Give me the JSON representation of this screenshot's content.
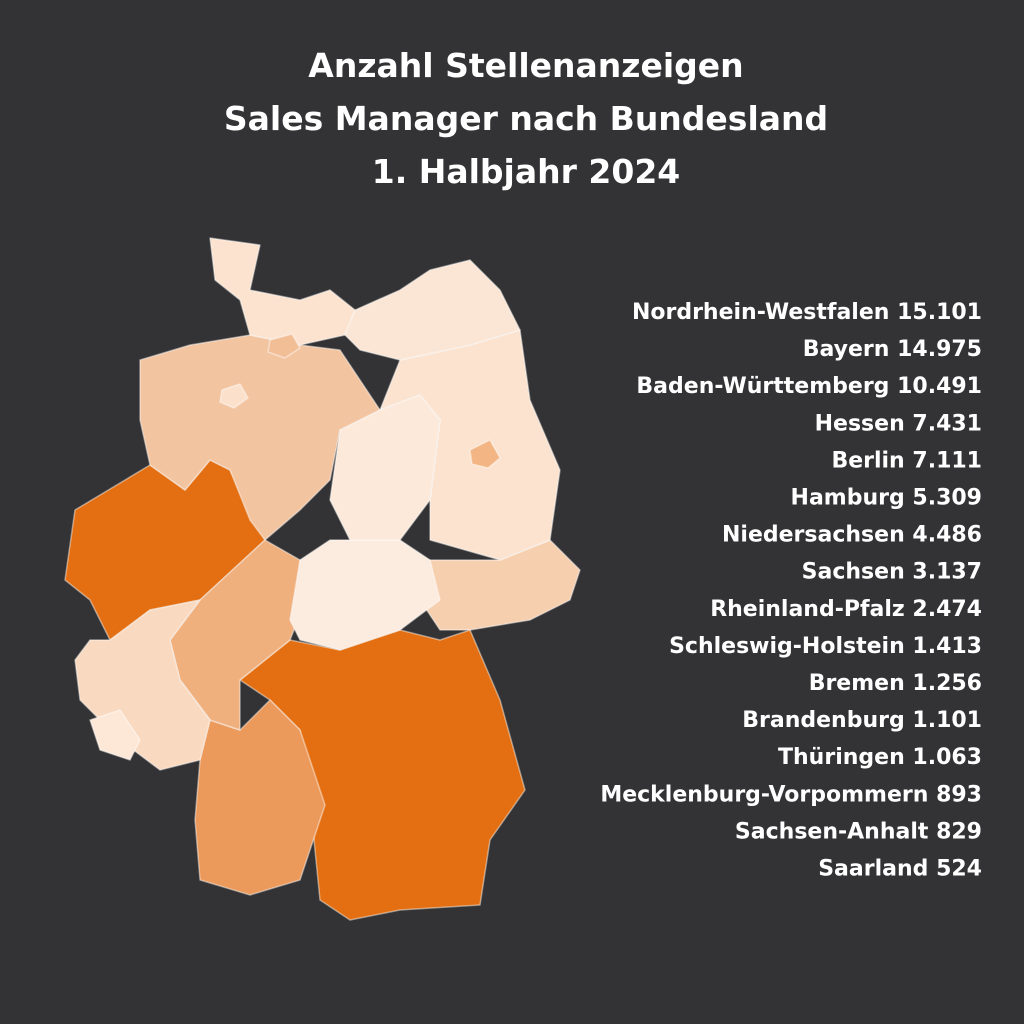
{
  "chart_data": {
    "type": "choropleth",
    "title": [
      "Anzahl Stellenanzeigen",
      "Sales Manager nach Bundesland",
      "1. Halbjahr 2024"
    ],
    "categories": [
      "Nordrhein-Westfalen",
      "Bayern",
      "Baden-Württemberg",
      "Hessen",
      "Berlin",
      "Hamburg",
      "Niedersachsen",
      "Sachsen",
      "Rheinland-Pfalz",
      "Schleswig-Holstein",
      "Bremen",
      "Brandenburg",
      "Thüringen",
      "Mecklenburg-Vorpommern",
      "Sachsen-Anhalt",
      "Saarland"
    ],
    "values": [
      15101,
      14975,
      10491,
      7431,
      7111,
      5309,
      4486,
      3137,
      2474,
      1413,
      1256,
      1101,
      1063,
      893,
      829,
      524
    ],
    "value_labels": [
      "15.101",
      "14.975",
      "10.491",
      "7.431",
      "7.111",
      "5.309",
      "4.486",
      "3.137",
      "2.474",
      "1.413",
      "1.256",
      "1.101",
      "1.063",
      "893",
      "829",
      "524"
    ],
    "colors": [
      "#e36f12",
      "#e36f12",
      "#ec9a5c",
      "#f0b07e",
      "#f2b583",
      "#f2be96",
      "#f2c4a0",
      "#f6cfaf",
      "#f9d9c0",
      "#fbe3cf",
      "#fbe1cc",
      "#fbe3d0",
      "#fcebdf",
      "#fbe6d5",
      "#fce9da",
      "#fde8d8"
    ]
  }
}
